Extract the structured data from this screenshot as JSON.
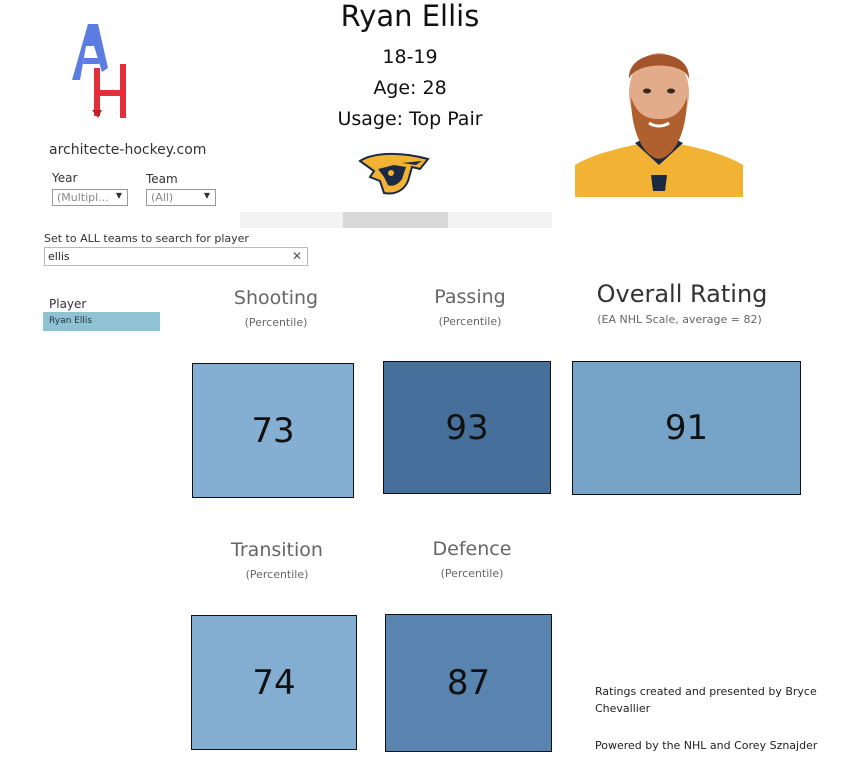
{
  "header": {
    "player_name": "Ryan Ellis",
    "season": "18-19",
    "age": "Age: 28",
    "usage": "Usage: Top Pair"
  },
  "brand": {
    "logo_letters": "AH",
    "site": "architecte-hockey.com"
  },
  "filters": {
    "year_label": "Year",
    "year_value": "(Multipl...",
    "team_label": "Team",
    "team_value": "(All)",
    "search_hint": "Set to ALL teams to search for player",
    "search_value": "ellis",
    "player_label": "Player",
    "player_value": "Ryan Ellis"
  },
  "metrics": [
    {
      "title": "Shooting",
      "subtitle": "(Percentile)",
      "value": "73",
      "color": "#84afd3"
    },
    {
      "title": "Passing",
      "subtitle": "(Percentile)",
      "value": "93",
      "color": "#466f9c"
    },
    {
      "title": "Overall Rating",
      "subtitle": "(EA NHL Scale, average = 82)",
      "value": "91",
      "color": "#76a4c9"
    },
    {
      "title": "Transition",
      "subtitle": "(Percentile)",
      "value": "74",
      "color": "#83aed2"
    },
    {
      "title": "Defence",
      "subtitle": "(Percentile)",
      "value": "87",
      "color": "#5984af"
    }
  ],
  "footer": {
    "credit": "Ratings created and presented by Bryce Chevallier",
    "powered": "Powered by the NHL and Corey Sznajder"
  },
  "icons": {
    "site_logo": "architecte-hockey-logo",
    "team_logo": "nashville-predators-logo",
    "photo": "player-headshot"
  },
  "colors": {
    "logo_blue": "#4c6fd6",
    "logo_red": "#e0202a",
    "player_select": "#8fc2d2",
    "jersey_gold": "#f2b233"
  }
}
